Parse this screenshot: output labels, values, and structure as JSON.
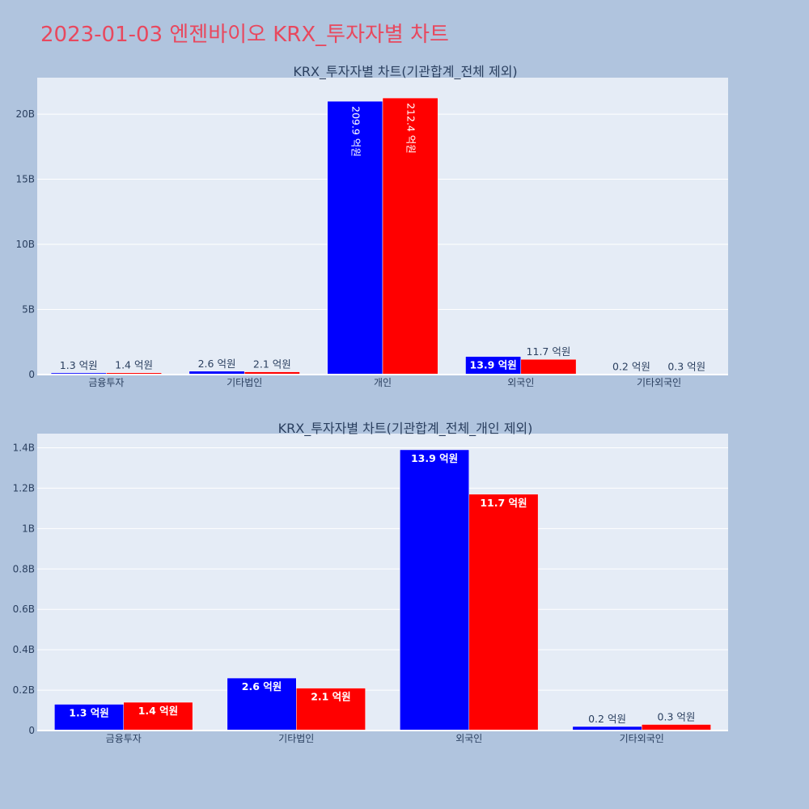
{
  "page_title": "2023-01-03 엔젠바이오 KRX_투자자별 차트",
  "colors": {
    "buy": "#0000ff",
    "sell": "#ff0000",
    "plot_bg": "#e5ecf6",
    "page_bg": "#b0c4de",
    "title": "#e8485e"
  },
  "chart_data": [
    {
      "type": "bar",
      "title": "KRX_투자자별 차트(기관합계_전체 제외)",
      "categories": [
        "금융투자",
        "기타법인",
        "개인",
        "외국인",
        "기타외국인"
      ],
      "series": [
        {
          "color": "#0000ff",
          "values": [
            130000000,
            260000000,
            20990000000,
            1390000000,
            20000000
          ],
          "labels": [
            "1.3 억원",
            "2.6 억원",
            "209.9 억원",
            "13.9 억원",
            "0.2 억원"
          ]
        },
        {
          "color": "#ff0000",
          "values": [
            140000000,
            210000000,
            21240000000,
            1170000000,
            30000000
          ],
          "labels": [
            "1.4 억원",
            "2.1 억원",
            "212.4 억원",
            "11.7 억원",
            "0.3 억원"
          ]
        }
      ],
      "ylim": [
        0,
        22800000000
      ],
      "yticks": [
        0,
        5000000000,
        10000000000,
        15000000000,
        20000000000
      ],
      "ytick_labels": [
        "0",
        "5B",
        "10B",
        "15B",
        "20B"
      ],
      "grid": true
    },
    {
      "type": "bar",
      "title": "KRX_투자자별 차트(기관합계_전체_개인 제외)",
      "categories": [
        "금융투자",
        "기타법인",
        "외국인",
        "기타외국인"
      ],
      "series": [
        {
          "color": "#0000ff",
          "values": [
            130000000,
            260000000,
            1390000000,
            20000000
          ],
          "labels": [
            "1.3 억원",
            "2.6 억원",
            "13.9 억원",
            "0.2 억원"
          ]
        },
        {
          "color": "#ff0000",
          "values": [
            140000000,
            210000000,
            1170000000,
            30000000
          ],
          "labels": [
            "1.4 억원",
            "2.1 억원",
            "11.7 억원",
            "0.3 억원"
          ]
        }
      ],
      "ylim": [
        0,
        1470000000
      ],
      "yticks": [
        0,
        200000000,
        400000000,
        600000000,
        800000000,
        1000000000,
        1200000000,
        1400000000
      ],
      "ytick_labels": [
        "0",
        "0.2B",
        "0.4B",
        "0.6B",
        "0.8B",
        "1B",
        "1.2B",
        "1.4B"
      ],
      "grid": true
    }
  ]
}
